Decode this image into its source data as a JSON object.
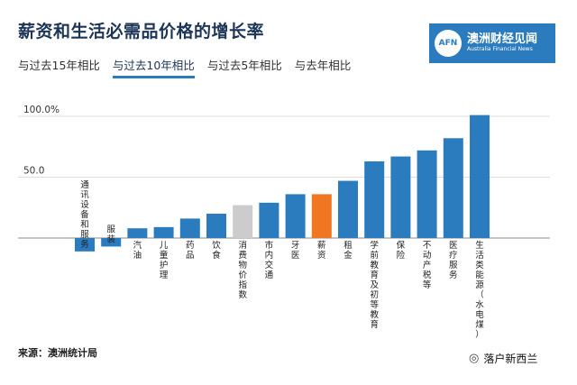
{
  "title": "薪资和生活必需品价格的增长率",
  "tabs": [
    "与过去15年相比",
    "与过去10年相比",
    "与过去5年相比",
    "与去年相比"
  ],
  "active_tab": 1,
  "logo": {
    "mark": "AFN",
    "name_cn": "澳洲财经见闻",
    "name_en": "Australia Financial News"
  },
  "source": "来源：澳洲统计局",
  "watermark": {
    "icon": "wechat-icon",
    "text": "落户新西兰"
  },
  "colors": {
    "bar": "#2b7bbf",
    "highlight_cpi": "#cccccc",
    "highlight_wage": "#f07622",
    "text": "#333333"
  },
  "chart_data": {
    "type": "bar",
    "categories": [
      "通讯设备和服务",
      "服装",
      "汽油",
      "儿童护理",
      "药品",
      "饮食",
      "消费物价指数",
      "市内交通",
      "牙医",
      "薪资",
      "租金",
      "学前教育及初等教育",
      "保险",
      "不动产税等",
      "医疗服务",
      "生活类能源（水电煤）"
    ],
    "values": [
      -11,
      -7,
      8,
      9,
      16,
      20,
      27,
      29,
      36,
      36,
      47,
      63,
      67,
      72,
      82,
      101
    ],
    "bar_colors": [
      "#2b7bbf",
      "#2b7bbf",
      "#2b7bbf",
      "#2b7bbf",
      "#2b7bbf",
      "#2b7bbf",
      "#cccccc",
      "#2b7bbf",
      "#2b7bbf",
      "#f07622",
      "#2b7bbf",
      "#2b7bbf",
      "#2b7bbf",
      "#2b7bbf",
      "#2b7bbf",
      "#2b7bbf"
    ],
    "yticks": [
      {
        "value": 100,
        "label": "100.0%"
      },
      {
        "value": 50,
        "label": "50.0"
      }
    ],
    "ylim": [
      -15,
      105
    ],
    "grid": true
  }
}
